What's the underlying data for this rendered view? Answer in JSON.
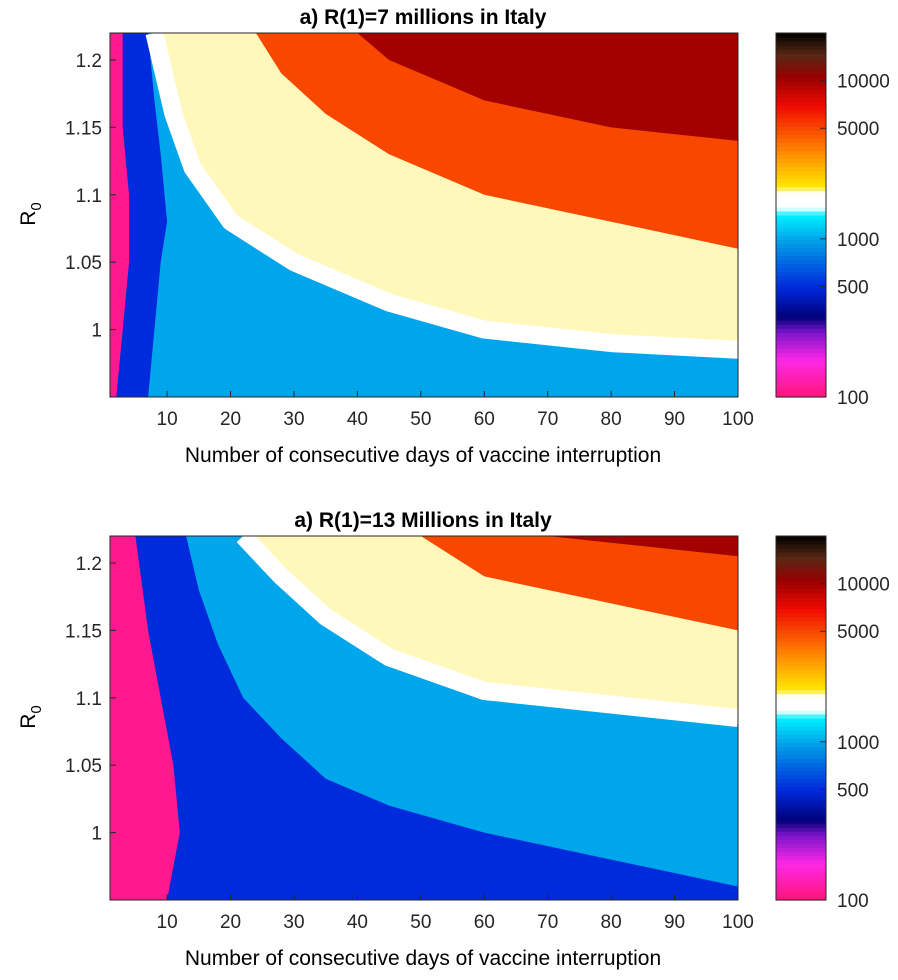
{
  "chart_data": [
    {
      "type": "heatmap",
      "title": "a) R(1)=7 millions in Italy",
      "xlabel": "Number of consecutive days of vaccine interruption",
      "ylabel_main": "R",
      "ylabel_sub": "0",
      "xlim": [
        1,
        100
      ],
      "ylim": [
        0.95,
        1.22
      ],
      "x_ticks": [
        10,
        20,
        30,
        40,
        50,
        60,
        70,
        80,
        90,
        100
      ],
      "y_ticks": [
        1,
        1.05,
        1.1,
        1.15,
        1.2
      ],
      "colorbar": {
        "scale": "log",
        "range": [
          100,
          20000
        ],
        "ticks": [
          100,
          500,
          1000,
          5000,
          10000
        ]
      },
      "contours": [
        {
          "level": 500,
          "points": [
            [
              2,
              0.95
            ],
            [
              3,
              1.0
            ],
            [
              4,
              1.05
            ],
            [
              4,
              1.1
            ],
            [
              3,
              1.15
            ],
            [
              3,
              1.22
            ]
          ]
        },
        {
          "level": 1000,
          "points": [
            [
              7,
              0.95
            ],
            [
              8,
              1.0
            ],
            [
              9,
              1.05
            ],
            [
              10,
              1.08
            ],
            [
              9,
              1.13
            ],
            [
              8,
              1.17
            ],
            [
              7,
              1.22
            ]
          ]
        },
        {
          "level": 2000,
          "points": [
            [
              100,
              0.985
            ],
            [
              80,
              0.99
            ],
            [
              60,
              1.0
            ],
            [
              45,
              1.02
            ],
            [
              30,
              1.05
            ],
            [
              20,
              1.08
            ],
            [
              14,
              1.12
            ],
            [
              11,
              1.16
            ],
            [
              9,
              1.2
            ],
            [
              8,
              1.22
            ]
          ]
        },
        {
          "level": 5000,
          "points": [
            [
              100,
              1.06
            ],
            [
              80,
              1.08
            ],
            [
              60,
              1.1
            ],
            [
              45,
              1.13
            ],
            [
              35,
              1.16
            ],
            [
              28,
              1.19
            ],
            [
              24,
              1.22
            ]
          ]
        },
        {
          "level": 10000,
          "points": [
            [
              100,
              1.14
            ],
            [
              80,
              1.15
            ],
            [
              60,
              1.17
            ],
            [
              45,
              1.2
            ],
            [
              40,
              1.22
            ]
          ]
        }
      ]
    },
    {
      "type": "heatmap",
      "title": "a) R(1)=13 Millions in Italy",
      "xlabel": "Number of consecutive days of vaccine interruption",
      "ylabel_main": "R",
      "ylabel_sub": "0",
      "xlim": [
        1,
        100
      ],
      "ylim": [
        0.95,
        1.22
      ],
      "x_ticks": [
        10,
        20,
        30,
        40,
        50,
        60,
        70,
        80,
        90,
        100
      ],
      "y_ticks": [
        1,
        1.05,
        1.1,
        1.15,
        1.2
      ],
      "colorbar": {
        "scale": "log",
        "range": [
          100,
          20000
        ],
        "ticks": [
          100,
          500,
          1000,
          5000,
          10000
        ]
      },
      "contours": [
        {
          "level": 500,
          "points": [
            [
              10,
              0.95
            ],
            [
              12,
              1.0
            ],
            [
              11,
              1.05
            ],
            [
              9,
              1.1
            ],
            [
              7,
              1.15
            ],
            [
              5,
              1.22
            ]
          ]
        },
        {
          "level": 1000,
          "points": [
            [
              100,
              0.96
            ],
            [
              80,
              0.98
            ],
            [
              60,
              1.0
            ],
            [
              45,
              1.02
            ],
            [
              35,
              1.04
            ],
            [
              28,
              1.07
            ],
            [
              22,
              1.1
            ],
            [
              18,
              1.14
            ],
            [
              15,
              1.18
            ],
            [
              13,
              1.22
            ]
          ]
        },
        {
          "level": 2000,
          "points": [
            [
              100,
              1.085
            ],
            [
              80,
              1.095
            ],
            [
              60,
              1.105
            ],
            [
              45,
              1.13
            ],
            [
              35,
              1.16
            ],
            [
              28,
              1.19
            ],
            [
              22,
              1.22
            ]
          ]
        },
        {
          "level": 5000,
          "points": [
            [
              100,
              1.15
            ],
            [
              80,
              1.17
            ],
            [
              60,
              1.19
            ],
            [
              50,
              1.22
            ]
          ]
        },
        {
          "level": 10000,
          "points": [
            [
              100,
              1.205
            ],
            [
              80,
              1.215
            ],
            [
              70,
              1.22
            ]
          ]
        }
      ]
    }
  ]
}
